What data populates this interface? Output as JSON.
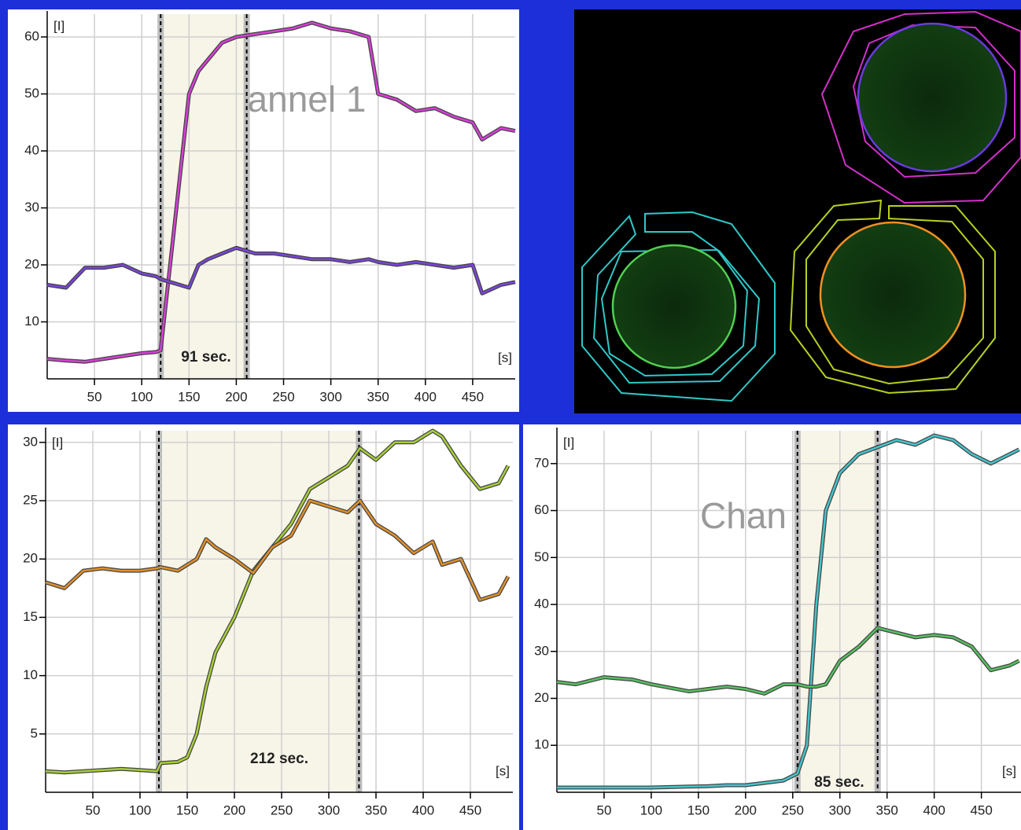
{
  "chart_data": [
    {
      "type": "line",
      "x_label": "[s]",
      "y_label": "[I]",
      "annotations": [
        "91 sec.",
        "annel 1"
      ],
      "x": [
        0,
        20,
        40,
        60,
        80,
        100,
        115,
        120,
        130,
        140,
        150,
        160,
        170,
        185,
        200,
        220,
        240,
        260,
        280,
        300,
        320,
        340,
        350,
        370,
        390,
        410,
        430,
        450,
        460,
        480,
        495
      ],
      "series": [
        {
          "color": "#d63fd6",
          "values": [
            3.5,
            3.2,
            3,
            3.5,
            4,
            4.5,
            4.7,
            5,
            20,
            35,
            50,
            54,
            56,
            59,
            60,
            60.5,
            61,
            61.5,
            62.5,
            61.5,
            61,
            60,
            50,
            49,
            47,
            47.5,
            46,
            45,
            42,
            44,
            43.5
          ]
        },
        {
          "color": "#7a45d8",
          "values": [
            16.5,
            16,
            19.5,
            19.5,
            20,
            18.5,
            18,
            17.5,
            17,
            16.5,
            16,
            20,
            21,
            22,
            23,
            22,
            22,
            21.5,
            21,
            21,
            20.5,
            21,
            20.5,
            20,
            20.5,
            20,
            19.5,
            20,
            15,
            16.5,
            17
          ]
        }
      ],
      "band": [
        120,
        211
      ],
      "xlim": [
        0,
        495
      ],
      "ylim": [
        0,
        64
      ],
      "xticks": [
        50,
        100,
        150,
        200,
        250,
        300,
        350,
        400,
        450
      ],
      "yticks": [
        10,
        20,
        30,
        40,
        50,
        60
      ],
      "grid": true
    },
    {
      "type": "line",
      "x_label": "[s]",
      "y_label": "[I]",
      "annotations": [
        "212 sec."
      ],
      "x": [
        0,
        20,
        40,
        60,
        80,
        100,
        118,
        122,
        140,
        150,
        160,
        170,
        180,
        200,
        220,
        240,
        260,
        280,
        300,
        320,
        333,
        350,
        370,
        390,
        410,
        420,
        440,
        460,
        480,
        490
      ],
      "series": [
        {
          "color": "#a8cf3a",
          "values": [
            1.8,
            1.7,
            1.8,
            1.9,
            2,
            1.9,
            1.8,
            2.5,
            2.6,
            3,
            5,
            9,
            12,
            15,
            19,
            21,
            23,
            26,
            27,
            28,
            29.5,
            28.5,
            30,
            30,
            31,
            30.5,
            28,
            26,
            26.5,
            28
          ]
        },
        {
          "color": "#e0902a",
          "values": [
            18,
            17.5,
            19,
            19.2,
            19,
            19,
            19.2,
            19.3,
            19,
            19.5,
            20,
            21.7,
            21,
            20,
            18.8,
            21,
            22,
            25,
            24.5,
            24,
            25,
            23,
            22,
            20.5,
            21.5,
            19.5,
            20,
            16.5,
            17,
            18.5
          ]
        }
      ],
      "band": [
        120,
        332
      ],
      "xlim": [
        0,
        495
      ],
      "ylim": [
        0,
        31
      ],
      "xticks": [
        50,
        100,
        150,
        200,
        250,
        300,
        350,
        400,
        450
      ],
      "yticks": [
        5,
        10,
        15,
        20,
        25,
        30
      ],
      "grid": true
    },
    {
      "type": "line",
      "x_label": "[s]",
      "y_label": "[I]",
      "annotations": [
        "85 sec.",
        "Chan"
      ],
      "x": [
        0,
        20,
        50,
        80,
        100,
        140,
        160,
        180,
        200,
        220,
        240,
        255,
        265,
        275,
        285,
        300,
        320,
        340,
        360,
        380,
        400,
        420,
        440,
        460,
        480,
        490
      ],
      "series": [
        {
          "color": "#45c4cc",
          "values": [
            1,
            1,
            1,
            1,
            1,
            1.2,
            1.3,
            1.5,
            1.5,
            2,
            2.5,
            4,
            10,
            40,
            60,
            68,
            72,
            73.5,
            75,
            74,
            76,
            75,
            72,
            70,
            72,
            73
          ]
        },
        {
          "color": "#55c060",
          "values": [
            23.5,
            23,
            24.5,
            24,
            23,
            21.5,
            22,
            22.5,
            22,
            21,
            23,
            23,
            22.5,
            22.5,
            23,
            28,
            31,
            35,
            34,
            33,
            33.5,
            33,
            31,
            26,
            27,
            28
          ]
        }
      ],
      "band": [
        255,
        340
      ],
      "xlim": [
        0,
        492
      ],
      "ylim": [
        0,
        77
      ],
      "xticks": [
        50,
        100,
        150,
        200,
        250,
        300,
        350,
        400,
        450
      ],
      "yticks": [
        10,
        20,
        30,
        40,
        50,
        60,
        70
      ],
      "grid": true
    }
  ]
}
